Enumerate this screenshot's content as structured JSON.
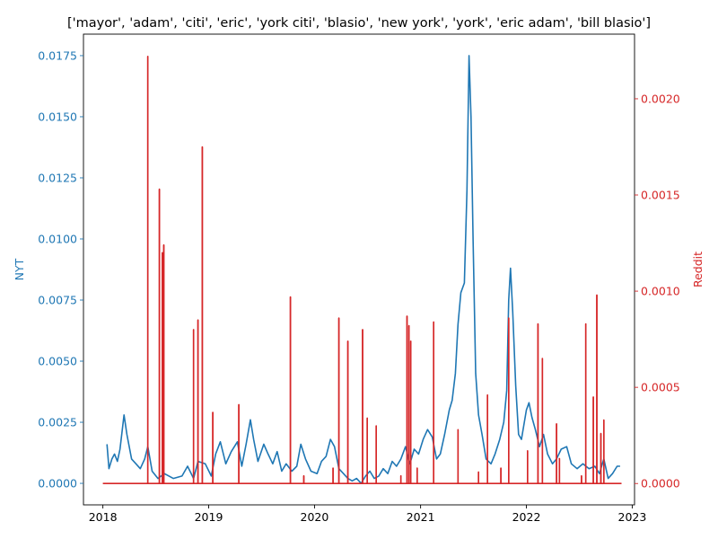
{
  "chart_data": {
    "type": "line",
    "title": "['mayor', 'adam', 'citi', 'eric', 'york citi', 'blasio', 'new york', 'york', 'eric adam', 'bill blasio']",
    "x_ticks": [
      "2018",
      "2019",
      "2020",
      "2021",
      "2022",
      "2023"
    ],
    "x_range": [
      "2017-10-26",
      "2023-01-09"
    ],
    "grid": false,
    "legend": "none",
    "left_axis": {
      "label": "NYT",
      "color": "#1f77b4",
      "ylim": [
        -0.00088,
        0.01838
      ],
      "ticks": [
        "0.0000",
        "0.0025",
        "0.0050",
        "0.0075",
        "0.0100",
        "0.0125",
        "0.0150",
        "0.0175"
      ]
    },
    "right_axis": {
      "label": "Reddit",
      "color": "#d62728",
      "ylim": [
        -0.000111,
        0.002336
      ],
      "ticks": [
        "0.0000",
        "0.0005",
        "0.0010",
        "0.0015",
        "0.0020"
      ]
    },
    "series": [
      {
        "axis": "left",
        "color": "#1f77b4",
        "points": [
          [
            "2018-01-15",
            0.0016
          ],
          [
            "2018-01-22",
            0.0006
          ],
          [
            "2018-02-01",
            0.001
          ],
          [
            "2018-02-10",
            0.0012
          ],
          [
            "2018-02-20",
            0.0009
          ],
          [
            "2018-03-01",
            0.0014
          ],
          [
            "2018-03-15",
            0.0028
          ],
          [
            "2018-03-25",
            0.002
          ],
          [
            "2018-04-10",
            0.001
          ],
          [
            "2018-04-25",
            0.0008
          ],
          [
            "2018-05-10",
            0.0006
          ],
          [
            "2018-05-25",
            0.001
          ],
          [
            "2018-06-05",
            0.0015
          ],
          [
            "2018-06-20",
            0.0005
          ],
          [
            "2018-07-10",
            0.0002
          ],
          [
            "2018-08-01",
            0.0004
          ],
          [
            "2018-09-01",
            0.0002
          ],
          [
            "2018-10-01",
            0.0003
          ],
          [
            "2018-10-20",
            0.0007
          ],
          [
            "2018-11-10",
            0.0002
          ],
          [
            "2018-11-25",
            0.0009
          ],
          [
            "2018-12-20",
            0.0008
          ],
          [
            "2019-01-10",
            0.0003
          ],
          [
            "2019-01-25",
            0.0012
          ],
          [
            "2019-02-10",
            0.0017
          ],
          [
            "2019-03-01",
            0.0008
          ],
          [
            "2019-03-20",
            0.0013
          ],
          [
            "2019-04-10",
            0.0017
          ],
          [
            "2019-04-25",
            0.0007
          ],
          [
            "2019-05-10",
            0.0016
          ],
          [
            "2019-05-25",
            0.0026
          ],
          [
            "2019-06-05",
            0.0018
          ],
          [
            "2019-06-20",
            0.0009
          ],
          [
            "2019-07-10",
            0.0016
          ],
          [
            "2019-07-25",
            0.0012
          ],
          [
            "2019-08-10",
            0.0008
          ],
          [
            "2019-08-25",
            0.0013
          ],
          [
            "2019-09-10",
            0.0005
          ],
          [
            "2019-09-25",
            0.0008
          ],
          [
            "2019-10-15",
            0.0005
          ],
          [
            "2019-11-01",
            0.0007
          ],
          [
            "2019-11-15",
            0.0016
          ],
          [
            "2019-12-01",
            0.001
          ],
          [
            "2019-12-20",
            0.0005
          ],
          [
            "2020-01-10",
            0.0004
          ],
          [
            "2020-01-25",
            0.0009
          ],
          [
            "2020-02-10",
            0.0011
          ],
          [
            "2020-02-25",
            0.0018
          ],
          [
            "2020-03-10",
            0.0015
          ],
          [
            "2020-03-25",
            0.0006
          ],
          [
            "2020-04-10",
            0.0004
          ],
          [
            "2020-04-25",
            0.0002
          ],
          [
            "2020-05-10",
            0.0001
          ],
          [
            "2020-05-25",
            0.0002
          ],
          [
            "2020-06-10",
            0.0
          ],
          [
            "2020-06-25",
            0.0003
          ],
          [
            "2020-07-10",
            0.0005
          ],
          [
            "2020-07-25",
            0.0002
          ],
          [
            "2020-08-10",
            0.0003
          ],
          [
            "2020-08-25",
            0.0006
          ],
          [
            "2020-09-10",
            0.0004
          ],
          [
            "2020-09-25",
            0.0009
          ],
          [
            "2020-10-10",
            0.0007
          ],
          [
            "2020-10-25",
            0.001
          ],
          [
            "2020-11-10",
            0.0015
          ],
          [
            "2020-11-25",
            0.0008
          ],
          [
            "2020-12-10",
            0.0014
          ],
          [
            "2020-12-25",
            0.0012
          ],
          [
            "2021-01-10",
            0.0018
          ],
          [
            "2021-01-25",
            0.0022
          ],
          [
            "2021-02-10",
            0.0019
          ],
          [
            "2021-02-25",
            0.001
          ],
          [
            "2021-03-10",
            0.0012
          ],
          [
            "2021-03-25",
            0.002
          ],
          [
            "2021-04-10",
            0.003
          ],
          [
            "2021-04-20",
            0.0034
          ],
          [
            "2021-05-01",
            0.0045
          ],
          [
            "2021-05-10",
            0.0065
          ],
          [
            "2021-05-20",
            0.0078
          ],
          [
            "2021-06-01",
            0.0082
          ],
          [
            "2021-06-10",
            0.012
          ],
          [
            "2021-06-17",
            0.0175
          ],
          [
            "2021-06-24",
            0.015
          ],
          [
            "2021-07-01",
            0.01
          ],
          [
            "2021-07-10",
            0.0045
          ],
          [
            "2021-07-20",
            0.0028
          ],
          [
            "2021-08-01",
            0.002
          ],
          [
            "2021-08-15",
            0.001
          ],
          [
            "2021-09-01",
            0.0008
          ],
          [
            "2021-09-15",
            0.0012
          ],
          [
            "2021-10-01",
            0.0018
          ],
          [
            "2021-10-15",
            0.0025
          ],
          [
            "2021-10-25",
            0.0038
          ],
          [
            "2021-11-01",
            0.0075
          ],
          [
            "2021-11-07",
            0.0088
          ],
          [
            "2021-11-15",
            0.007
          ],
          [
            "2021-11-25",
            0.004
          ],
          [
            "2021-12-05",
            0.002
          ],
          [
            "2021-12-15",
            0.0018
          ],
          [
            "2022-01-01",
            0.003
          ],
          [
            "2022-01-10",
            0.0033
          ],
          [
            "2022-01-20",
            0.0027
          ],
          [
            "2022-02-01",
            0.0022
          ],
          [
            "2022-02-15",
            0.0015
          ],
          [
            "2022-03-01",
            0.002
          ],
          [
            "2022-03-15",
            0.0012
          ],
          [
            "2022-04-01",
            0.0008
          ],
          [
            "2022-04-15",
            0.001
          ],
          [
            "2022-05-01",
            0.0014
          ],
          [
            "2022-05-20",
            0.0015
          ],
          [
            "2022-06-05",
            0.0008
          ],
          [
            "2022-06-25",
            0.0006
          ],
          [
            "2022-07-15",
            0.0008
          ],
          [
            "2022-08-05",
            0.0006
          ],
          [
            "2022-08-25",
            0.0007
          ],
          [
            "2022-09-10",
            0.0004
          ],
          [
            "2022-09-25",
            0.001
          ],
          [
            "2022-10-10",
            0.0002
          ],
          [
            "2022-10-25",
            0.0004
          ],
          [
            "2022-11-10",
            0.0007
          ],
          [
            "2022-11-20",
            0.0007
          ]
        ]
      },
      {
        "axis": "right",
        "color": "#d62728",
        "baseline": 0.0,
        "line_start": "2018-01-01",
        "line_end": "2022-11-25",
        "spikes": [
          [
            "2018-06-05",
            0.00222
          ],
          [
            "2018-07-15",
            0.00153
          ],
          [
            "2018-07-25",
            0.0012
          ],
          [
            "2018-07-30",
            0.00124
          ],
          [
            "2018-11-10",
            0.0008
          ],
          [
            "2018-11-25",
            0.00085
          ],
          [
            "2018-12-10",
            0.00175
          ],
          [
            "2019-01-15",
            0.00037
          ],
          [
            "2019-04-15",
            0.00041
          ],
          [
            "2019-10-10",
            0.00097
          ],
          [
            "2019-11-25",
            4e-05
          ],
          [
            "2020-03-05",
            8e-05
          ],
          [
            "2020-03-25",
            0.00086
          ],
          [
            "2020-04-25",
            0.00074
          ],
          [
            "2020-06-15",
            0.0008
          ],
          [
            "2020-07-01",
            0.00034
          ],
          [
            "2020-08-01",
            0.0003
          ],
          [
            "2020-10-25",
            4e-05
          ],
          [
            "2020-11-15",
            0.00087
          ],
          [
            "2020-11-22",
            0.00082
          ],
          [
            "2020-11-28",
            0.00074
          ],
          [
            "2020-12-20",
            8e-05
          ],
          [
            "2021-02-15",
            0.00084
          ],
          [
            "2021-05-10",
            0.00028
          ],
          [
            "2021-07-20",
            6e-05
          ],
          [
            "2021-08-20",
            0.00046
          ],
          [
            "2021-10-05",
            8e-05
          ],
          [
            "2021-11-01",
            0.00086
          ],
          [
            "2022-01-05",
            0.00017
          ],
          [
            "2022-02-10",
            0.00083
          ],
          [
            "2022-02-25",
            0.00065
          ],
          [
            "2022-04-15",
            0.00031
          ],
          [
            "2022-04-25",
            0.00013
          ],
          [
            "2022-07-10",
            4e-05
          ],
          [
            "2022-07-25",
            0.00083
          ],
          [
            "2022-08-20",
            0.00045
          ],
          [
            "2022-09-01",
            0.00098
          ],
          [
            "2022-09-15",
            0.00026
          ],
          [
            "2022-09-25",
            0.00033
          ]
        ]
      }
    ]
  }
}
